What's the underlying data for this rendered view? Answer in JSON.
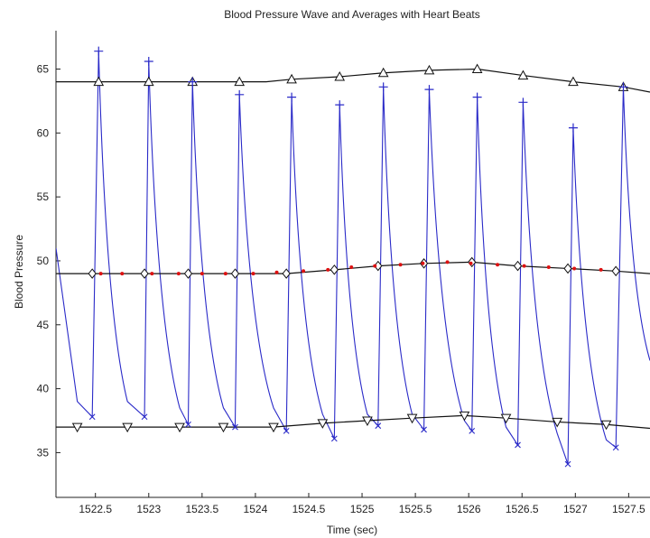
{
  "chart_data": {
    "type": "line",
    "title": "Blood Pressure Wave and Averages with Heart Beats",
    "xlabel": "Time (sec)",
    "ylabel": "Blood Pressure",
    "xlim": [
      1522.13,
      1527.7
    ],
    "ylim": [
      31.5,
      68
    ],
    "x_ticks": [
      1522.5,
      1523,
      1523.5,
      1524,
      1524.5,
      1525,
      1525.5,
      1526,
      1526.5,
      1527,
      1527.5
    ],
    "x_tick_labels": [
      "1522.5",
      "1523",
      "1523.5",
      "1524",
      "1524.5",
      "1525",
      "1525.5",
      "1526",
      "1526.5",
      "1527",
      "1527.5"
    ],
    "y_ticks": [
      35,
      40,
      45,
      50,
      55,
      60,
      65
    ],
    "y_tick_labels": [
      "35",
      "40",
      "45",
      "50",
      "55",
      "60",
      "65"
    ],
    "grid": false,
    "legend": "none",
    "colors": {
      "wave": "#2a2ac8",
      "averages": "#111111",
      "mean_dots": "#dd1111",
      "beat_markers": "#2a2ac8",
      "axes": "#222222"
    },
    "series": [
      {
        "marker": "none",
        "x": [
          1522.13,
          1522.33,
          1522.47,
          1522.53,
          1522.8,
          1522.96,
          1523.0,
          1523.29,
          1523.37,
          1523.41,
          1523.7,
          1523.81,
          1523.85,
          1524.17,
          1524.29,
          1524.34,
          1524.63,
          1524.74,
          1524.79,
          1525.05,
          1525.15,
          1525.2,
          1525.47,
          1525.58,
          1525.63,
          1525.96,
          1526.03,
          1526.08,
          1526.35,
          1526.46,
          1526.51,
          1526.83,
          1526.93,
          1526.98,
          1527.29,
          1527.38,
          1527.45,
          1527.7
        ],
        "y": [
          51.0,
          39.0,
          37.8,
          66.4,
          39.0,
          37.8,
          65.6,
          38.5,
          37.2,
          64.0,
          38.5,
          37.0,
          63.0,
          38.5,
          36.7,
          62.8,
          38.0,
          36.1,
          62.2,
          38.0,
          37.1,
          63.6,
          38.0,
          36.8,
          63.4,
          37.5,
          36.7,
          62.8,
          37.0,
          35.6,
          62.4,
          36.5,
          34.1,
          60.4,
          36.0,
          35.4,
          63.6,
          42.2
        ]
      },
      {
        "marker": "triangle-up",
        "x": [
          1522.13,
          1522.53,
          1523.0,
          1523.41,
          1523.85,
          1524.1,
          1524.34,
          1524.79,
          1525.2,
          1525.63,
          1526.08,
          1526.51,
          1526.98,
          1527.45,
          1527.7
        ],
        "y": [
          64.0,
          64.0,
          64.0,
          64.0,
          64.0,
          64.0,
          64.2,
          64.4,
          64.7,
          64.9,
          65.0,
          64.5,
          64.0,
          63.6,
          63.2
        ]
      },
      {
        "marker": "diamond",
        "x": [
          1522.13,
          1522.47,
          1522.96,
          1523.37,
          1523.81,
          1524.1,
          1524.29,
          1524.74,
          1525.15,
          1525.58,
          1526.03,
          1526.46,
          1526.93,
          1527.38,
          1527.7
        ],
        "y": [
          49.0,
          49.0,
          49.0,
          49.0,
          49.0,
          49.0,
          49.0,
          49.3,
          49.6,
          49.8,
          49.9,
          49.6,
          49.4,
          49.2,
          49.0
        ]
      },
      {
        "marker": "triangle-down",
        "x": [
          1522.13,
          1522.33,
          1522.8,
          1523.29,
          1523.7,
          1524.1,
          1524.17,
          1524.63,
          1525.05,
          1525.47,
          1525.96,
          1526.35,
          1526.83,
          1527.29,
          1527.7
        ],
        "y": [
          37.0,
          37.0,
          37.0,
          37.0,
          37.0,
          37.0,
          37.0,
          37.3,
          37.5,
          37.7,
          37.9,
          37.7,
          37.4,
          37.2,
          36.9
        ]
      }
    ],
    "mean_points": {
      "x": [
        1522.55,
        1522.75,
        1523.03,
        1523.28,
        1523.5,
        1523.72,
        1523.98,
        1524.2,
        1524.45,
        1524.68,
        1524.9,
        1525.12,
        1525.36,
        1525.57,
        1525.8,
        1526.02,
        1526.27,
        1526.52,
        1526.75,
        1526.99,
        1527.24
      ],
      "y": [
        49.0,
        49.0,
        49.0,
        49.0,
        49.0,
        49.0,
        49.0,
        49.1,
        49.2,
        49.3,
        49.5,
        49.6,
        49.7,
        49.8,
        49.9,
        49.8,
        49.7,
        49.6,
        49.5,
        49.4,
        49.3
      ]
    },
    "peaks": {
      "x": [
        1522.53,
        1523.0,
        1523.41,
        1523.85,
        1524.34,
        1524.79,
        1525.2,
        1525.63,
        1526.08,
        1526.51,
        1526.98,
        1527.45
      ],
      "y": [
        66.4,
        65.6,
        64.0,
        63.0,
        62.8,
        62.2,
        63.6,
        63.4,
        62.8,
        62.4,
        60.4,
        63.6
      ]
    },
    "troughs": {
      "x": [
        1522.47,
        1522.96,
        1523.37,
        1523.81,
        1524.29,
        1524.74,
        1525.15,
        1525.58,
        1526.03,
        1526.46,
        1526.93,
        1527.38
      ],
      "y": [
        37.8,
        37.8,
        37.2,
        37.0,
        36.7,
        36.1,
        37.1,
        36.8,
        36.7,
        35.6,
        34.1,
        35.4
      ]
    }
  }
}
